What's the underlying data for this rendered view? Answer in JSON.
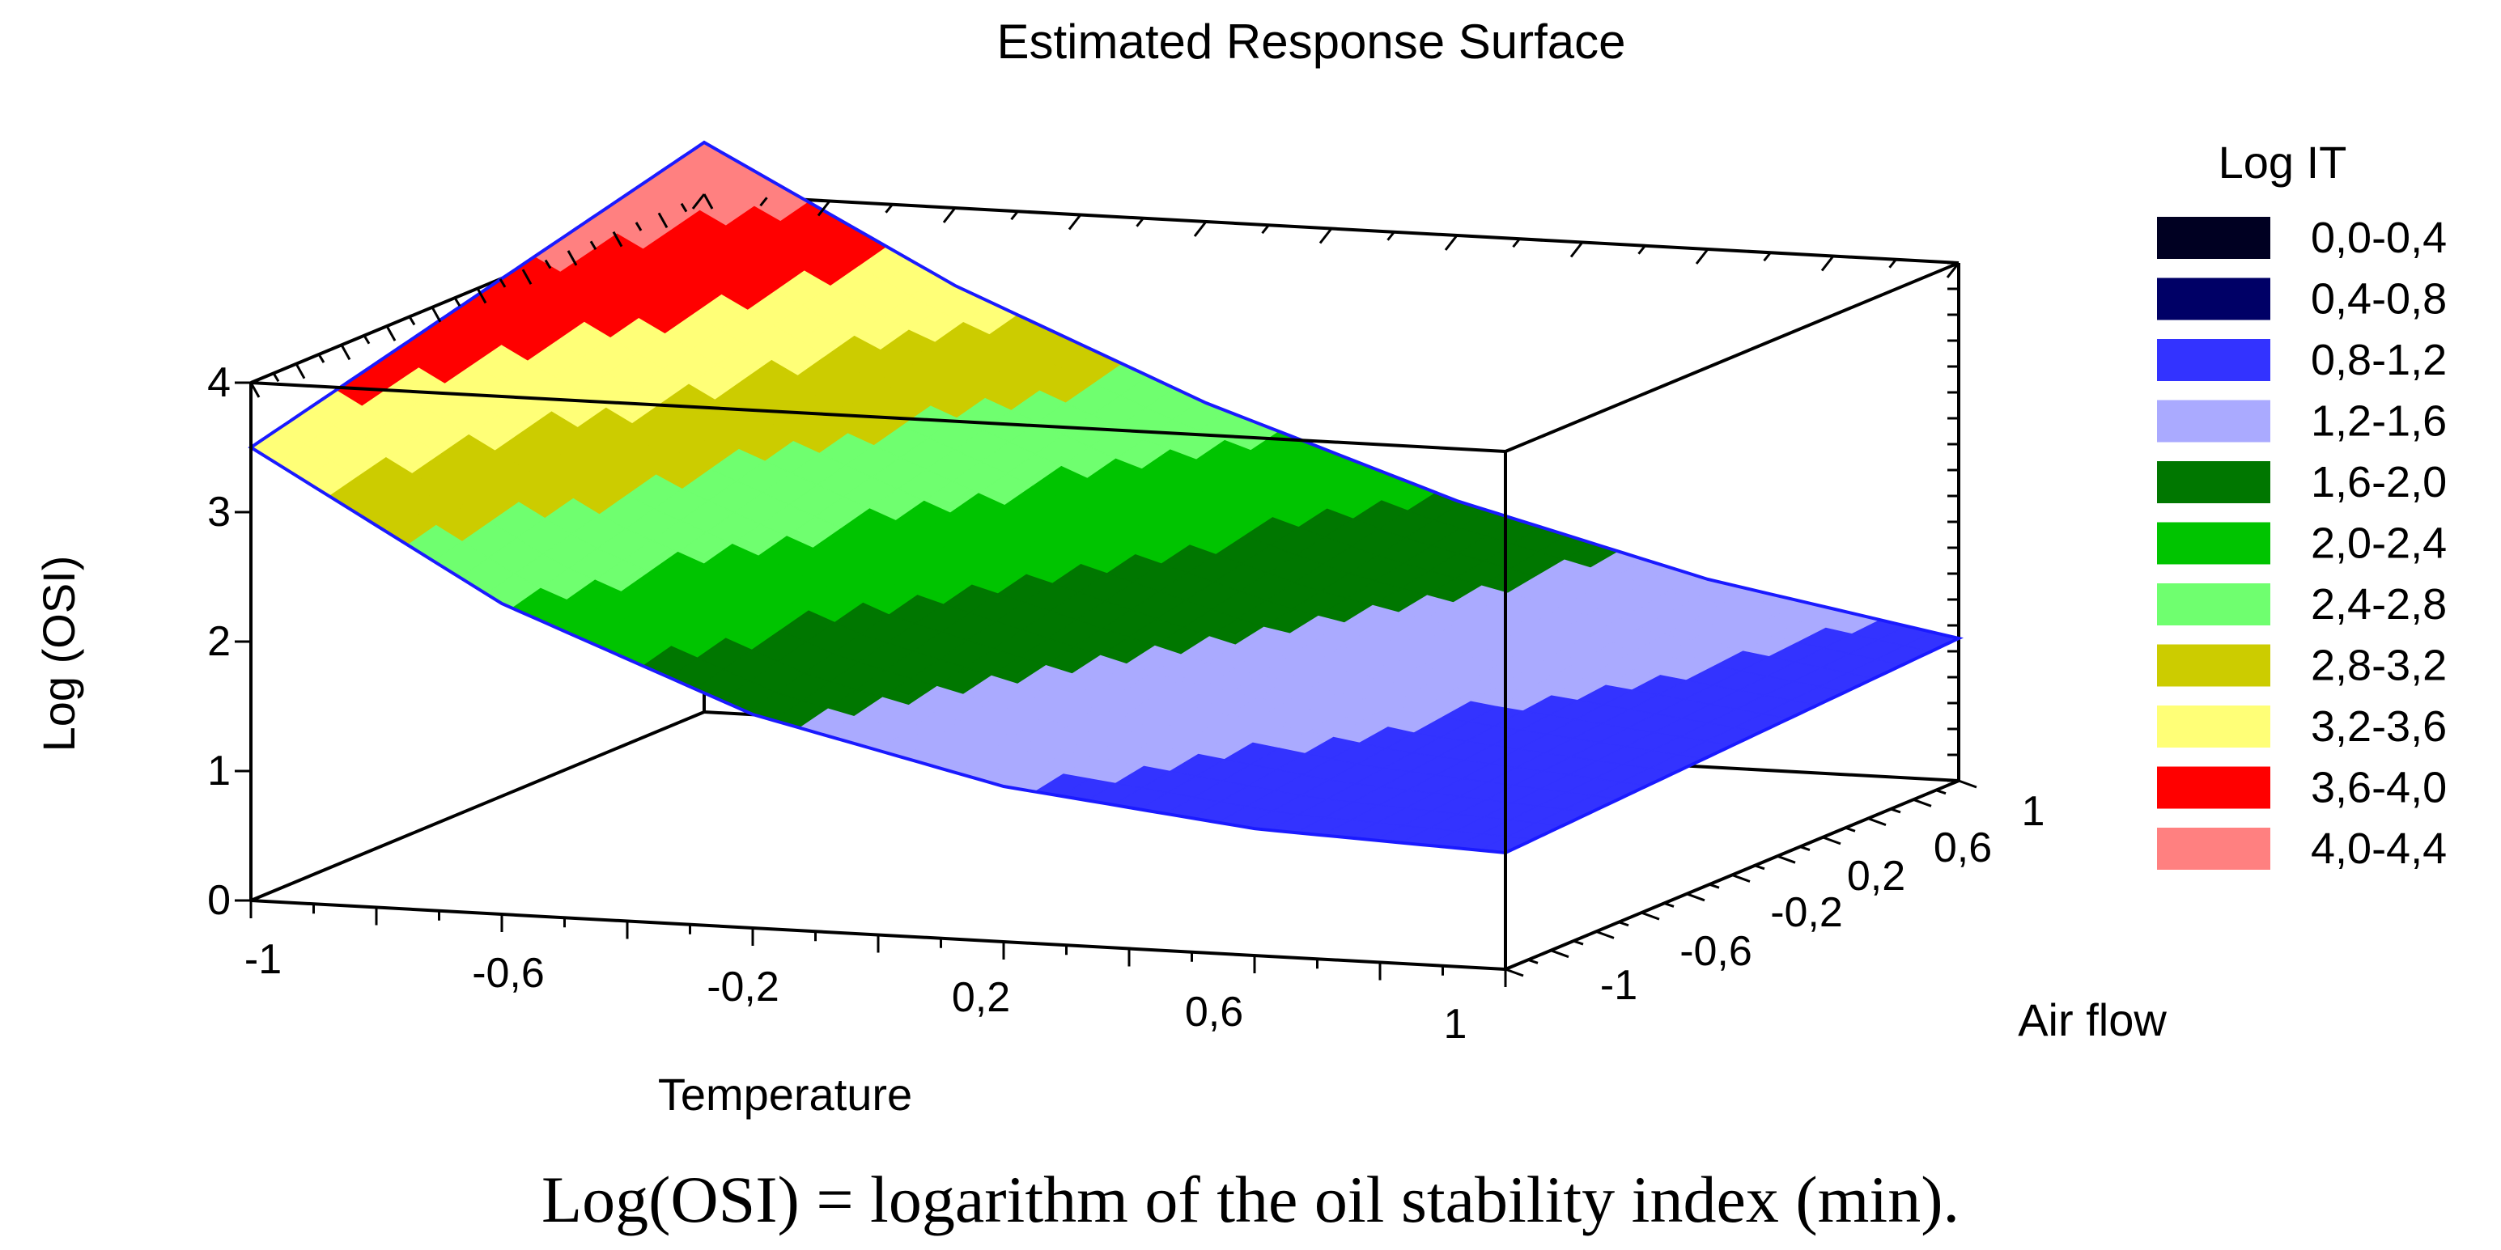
{
  "chart_data": {
    "type": "surface3d",
    "title": "Estimated Response Surface",
    "xlabel": "Temperature",
    "ylabel": "Air flow",
    "zlabel": "Log (OSI)",
    "x_ticks": [
      "-1",
      "-0,6",
      "-0,2",
      "0,2",
      "0,6",
      "1"
    ],
    "y_ticks": [
      "-1",
      "-0,6",
      "-0,2",
      "0,2",
      "0,6",
      "1"
    ],
    "z_ticks": [
      "0",
      "1",
      "2",
      "3",
      "4"
    ],
    "x_range": [
      -1,
      1
    ],
    "y_range": [
      -1,
      1
    ],
    "z_range": [
      0,
      4
    ],
    "legend": {
      "title": "Log IT",
      "position": "right",
      "items": [
        {
          "label": "0,0-0,4",
          "color": "#000022"
        },
        {
          "label": "0,4-0,8",
          "color": "#000066"
        },
        {
          "label": "0,8-1,2",
          "color": "#3333ff"
        },
        {
          "label": "1,2-1,6",
          "color": "#aaaaff"
        },
        {
          "label": "1,6-2,0",
          "color": "#007700"
        },
        {
          "label": "2,0-2,4",
          "color": "#00c400"
        },
        {
          "label": "2,4-2,8",
          "color": "#6fff6f"
        },
        {
          "label": "2,8-3,2",
          "color": "#cccc00"
        },
        {
          "label": "3,2-3,6",
          "color": "#ffff77"
        },
        {
          "label": "3,6-4,0",
          "color": "#ff0000"
        },
        {
          "label": "4,0-4,4",
          "color": "#ff8080"
        }
      ]
    },
    "surface": {
      "temperature": [
        -1,
        -0.6,
        -0.2,
        0.2,
        0.6,
        1
      ],
      "logosi_at_airflow_-1": [
        3.5,
        2.4,
        1.65,
        1.2,
        0.98,
        0.9
      ],
      "logosi_at_airflow_1": [
        4.4,
        3.4,
        2.6,
        1.95,
        1.45,
        1.1
      ],
      "edge_color": "#1a1aff"
    }
  },
  "caption": "Log(OSI) = logarithm of the oil stability index (min)."
}
